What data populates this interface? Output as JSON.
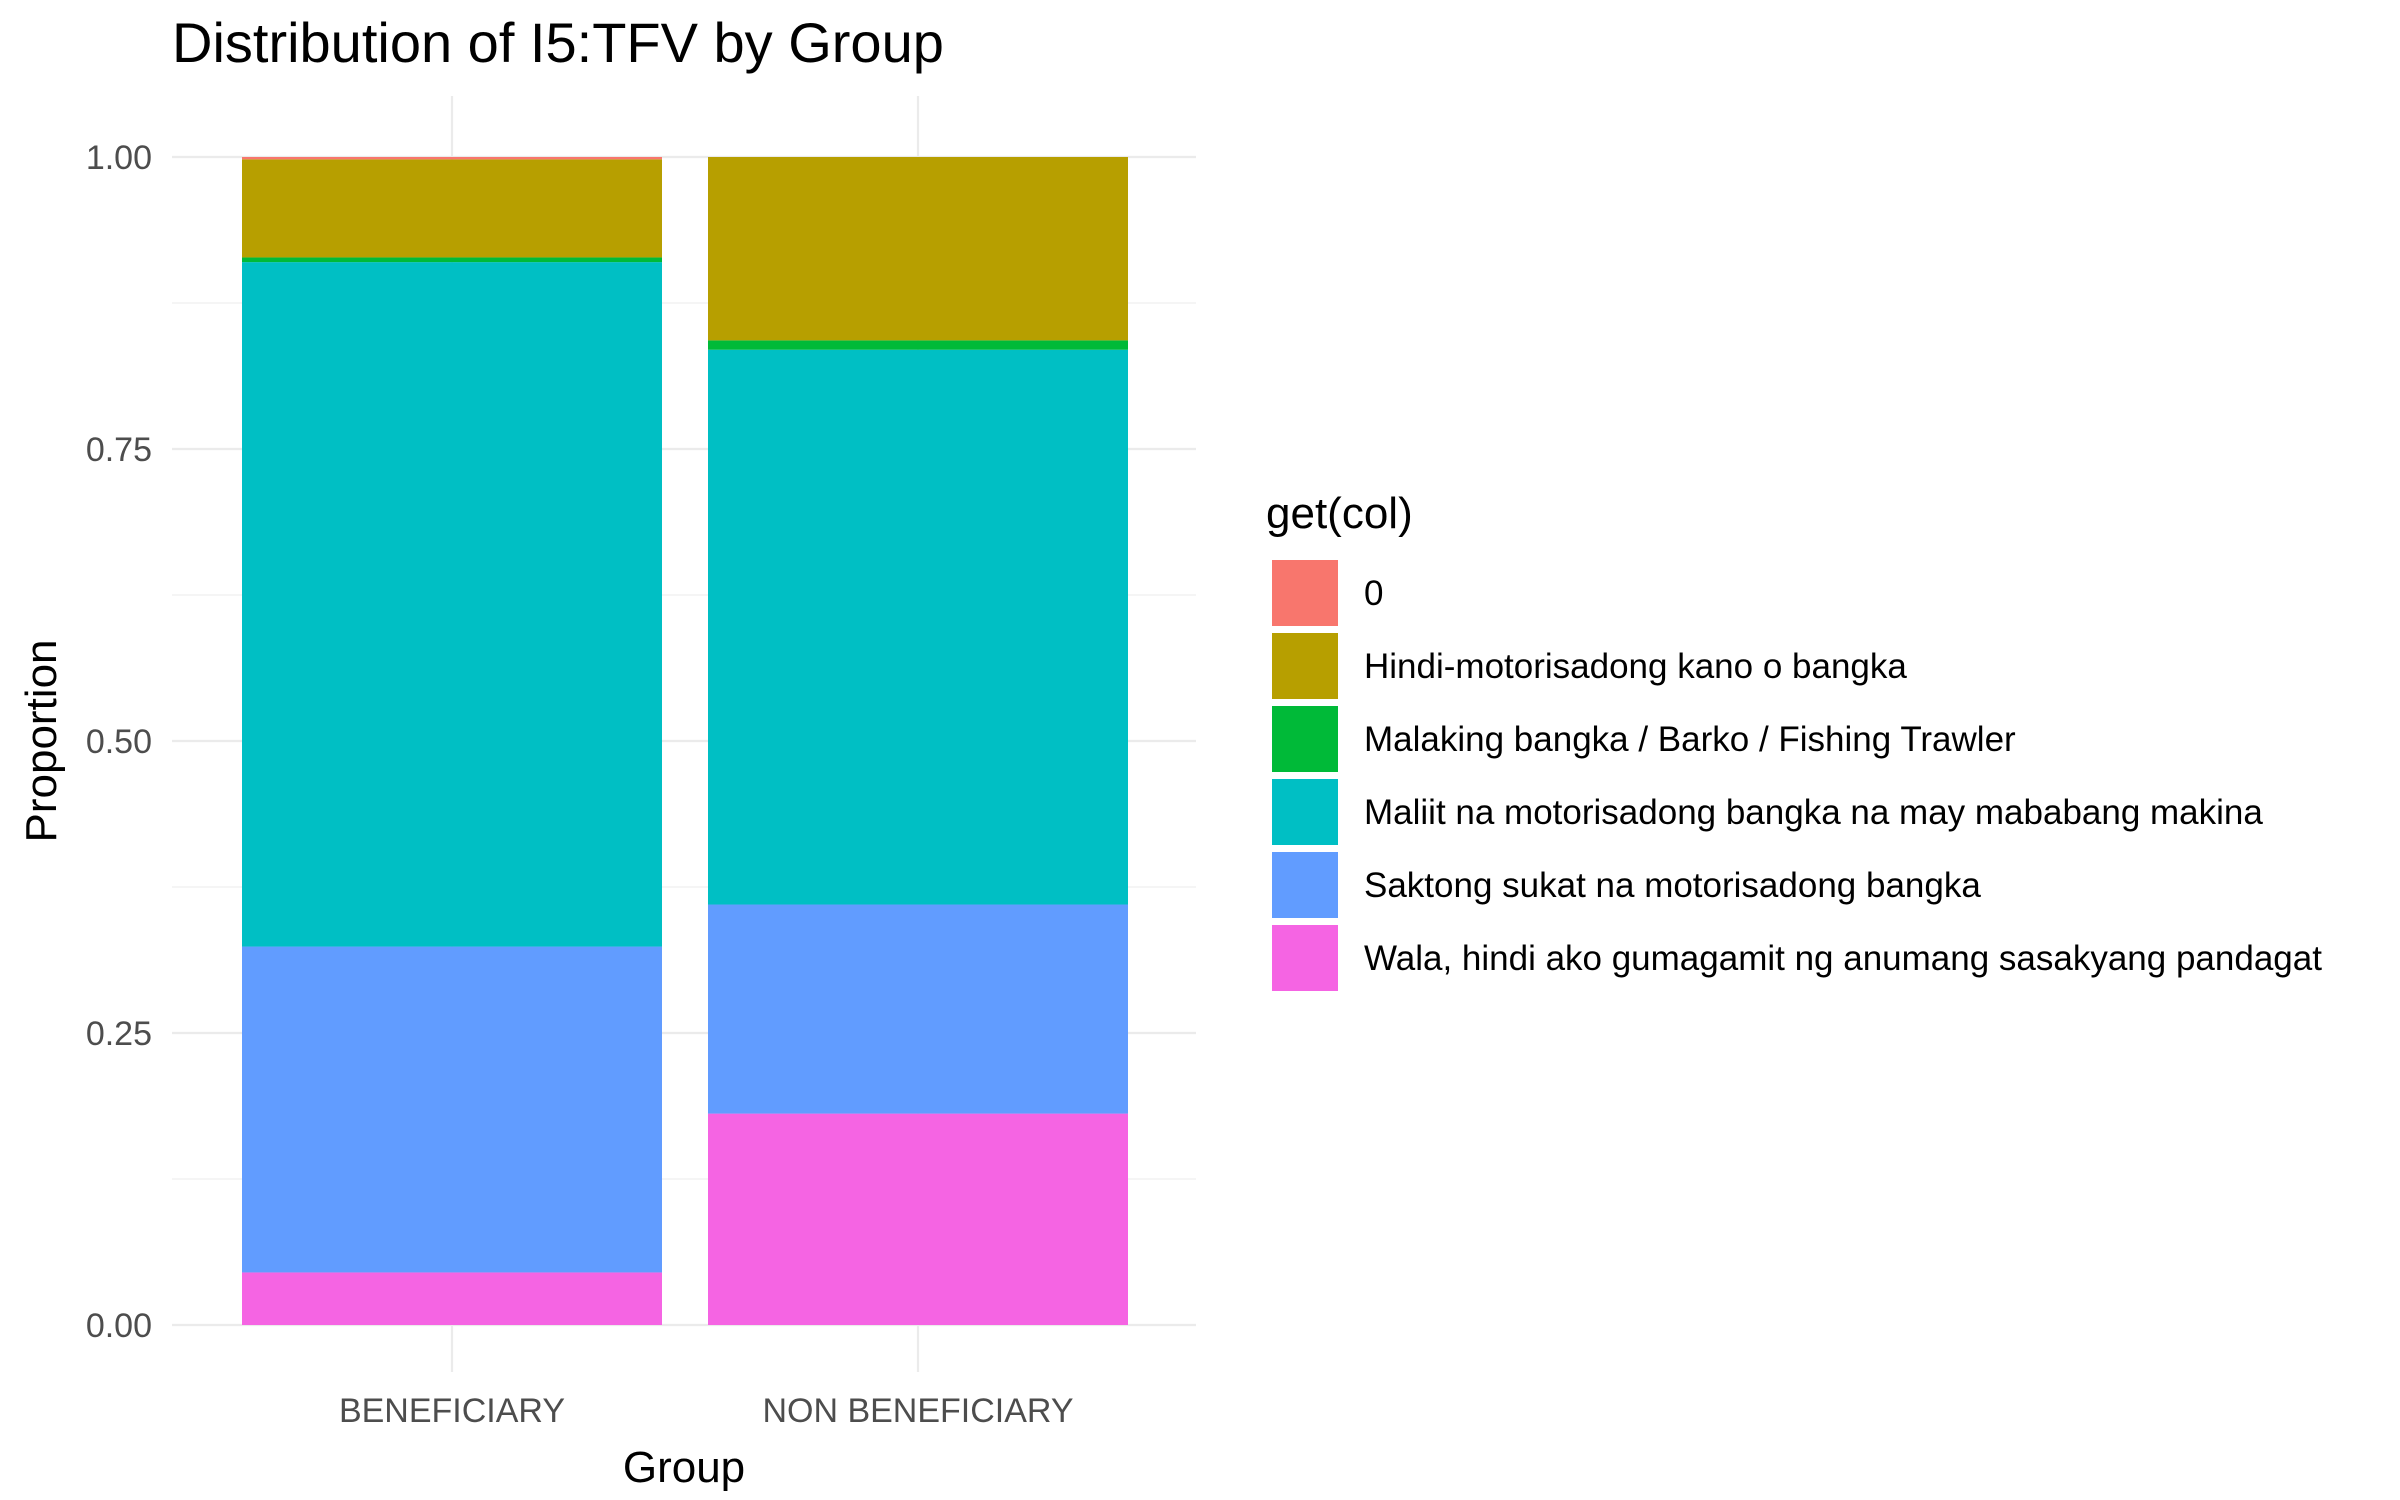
{
  "chart_data": {
    "type": "bar",
    "stacked": true,
    "title": "Distribution of I5:TFV by Group",
    "xlabel": "Group",
    "ylabel": "Proportion",
    "ylim": [
      0,
      1
    ],
    "yticks": [
      "0.00",
      "0.25",
      "0.50",
      "0.75",
      "1.00"
    ],
    "ytick_values": [
      0,
      0.25,
      0.5,
      0.75,
      1.0
    ],
    "grid": true,
    "legend_title": "get(col)",
    "legend_position": "right",
    "categories": [
      "BENEFICIARY",
      "NON BENEFICIARY"
    ],
    "series": [
      {
        "name": "0",
        "color": "#F8766D",
        "values": [
          0.002,
          0.0
        ]
      },
      {
        "name": "Hindi-motorisadong kano o bangka",
        "color": "#B79F00",
        "values": [
          0.084,
          0.157
        ]
      },
      {
        "name": "Malaking bangka / Barko / Fishing Trawler",
        "color": "#00BA38",
        "values": [
          0.004,
          0.008
        ]
      },
      {
        "name": "Maliit na motorisadong bangka na may mababang makina",
        "color": "#00BFC4",
        "values": [
          0.586,
          0.475
        ]
      },
      {
        "name": "Saktong sukat na motorisadong bangka",
        "color": "#619CFF",
        "values": [
          0.279,
          0.179
        ]
      },
      {
        "name": "Wala, hindi ako gumagamit ng anumang sasakyang pandagat",
        "color": "#F564E3",
        "values": [
          0.045,
          0.181
        ]
      }
    ]
  }
}
